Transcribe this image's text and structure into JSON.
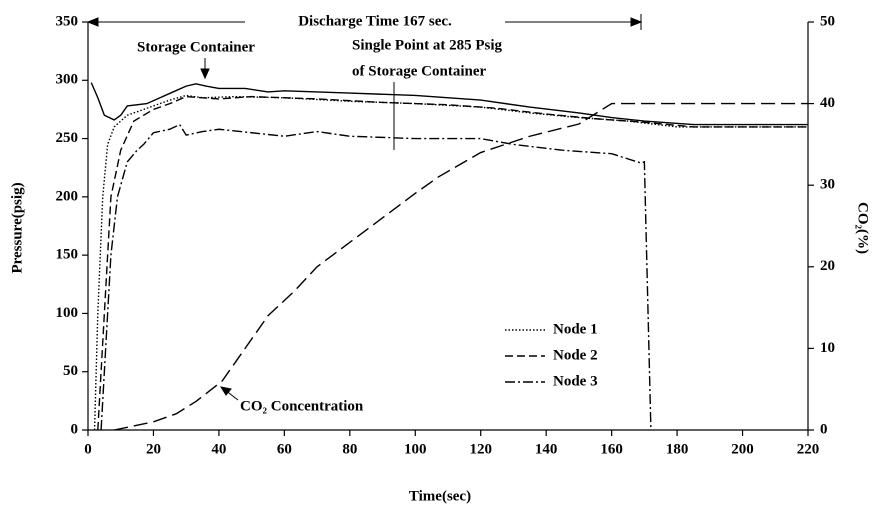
{
  "chart_data": {
    "type": "line",
    "x_label": "Time(sec)",
    "y_label": "Pressure(psig)",
    "y2_label": "CO₂(%)",
    "xlim": [
      0,
      220
    ],
    "xticks": [
      0,
      20,
      40,
      60,
      80,
      100,
      120,
      140,
      160,
      180,
      200,
      220
    ],
    "ylim": [
      0,
      350
    ],
    "yticks": [
      0,
      50,
      100,
      150,
      200,
      250,
      300,
      350
    ],
    "y2lim": [
      0,
      50
    ],
    "y2ticks": [
      0,
      10,
      20,
      30,
      40,
      50
    ],
    "legend": "lower right",
    "annotations": [
      "Discharge Time 167 sec.",
      "Storage Container",
      "Single Point at 285 Psig",
      "of Storage Container",
      "CO₂ Concentration"
    ],
    "series": [
      {
        "color": "#000",
        "dash": "solid",
        "x": [
          1,
          3,
          5,
          8,
          10,
          12,
          18,
          22,
          26,
          30,
          33,
          36,
          40,
          48,
          55,
          60,
          80,
          100,
          120,
          135,
          150,
          160,
          170,
          185,
          220
        ],
        "values": [
          298,
          285,
          270,
          266,
          270,
          278,
          280,
          285,
          290,
          295,
          297,
          295,
          293,
          293,
          290,
          291,
          289,
          287,
          283,
          277,
          272,
          268,
          265,
          262,
          262
        ]
      },
      {
        "name": "Node 1",
        "color": "#000",
        "dash": "dotted",
        "x": [
          2,
          3,
          4.5,
          6,
          8,
          12,
          20,
          25,
          30,
          35,
          45,
          60,
          80,
          100,
          120,
          135,
          150,
          165,
          180,
          220
        ],
        "values": [
          0,
          100,
          200,
          245,
          260,
          270,
          278,
          283,
          287,
          285,
          286,
          285,
          282,
          280,
          277,
          272,
          268,
          265,
          260,
          260
        ]
      },
      {
        "name": "Node 2",
        "color": "#000",
        "dash": "dashed",
        "x": [
          3,
          5,
          7,
          10,
          14,
          20,
          25,
          30,
          40,
          50,
          70,
          90,
          110,
          125,
          140,
          155,
          170,
          185,
          220
        ],
        "values": [
          0,
          100,
          200,
          240,
          265,
          275,
          280,
          286,
          284,
          286,
          284,
          281,
          279,
          276,
          271,
          267,
          264,
          260,
          260
        ]
      },
      {
        "name": "Node 3",
        "color": "#000",
        "dash": "dashdot",
        "x": [
          4,
          6,
          7,
          9,
          12,
          15,
          17,
          20,
          25,
          28,
          30,
          35,
          40,
          50,
          60,
          70,
          80,
          100,
          120,
          130,
          145,
          160,
          169,
          170,
          172
        ],
        "values": [
          0,
          100,
          150,
          200,
          230,
          240,
          245,
          255,
          258,
          262,
          253,
          256,
          258,
          255,
          252,
          256,
          252,
          250,
          250,
          245,
          240,
          237,
          229,
          230,
          0
        ]
      },
      {
        "color": "#000",
        "dash": "longdash",
        "axis": "y2",
        "x": [
          8,
          20,
          27,
          33,
          41,
          48,
          55,
          63,
          70,
          80,
          90,
          100,
          107,
          120,
          135,
          150,
          160,
          220
        ],
        "values": [
          0,
          1,
          2,
          3.5,
          6,
          10,
          14,
          17,
          20,
          23,
          26,
          29,
          31,
          34,
          36,
          37.5,
          40,
          40
        ]
      }
    ]
  }
}
